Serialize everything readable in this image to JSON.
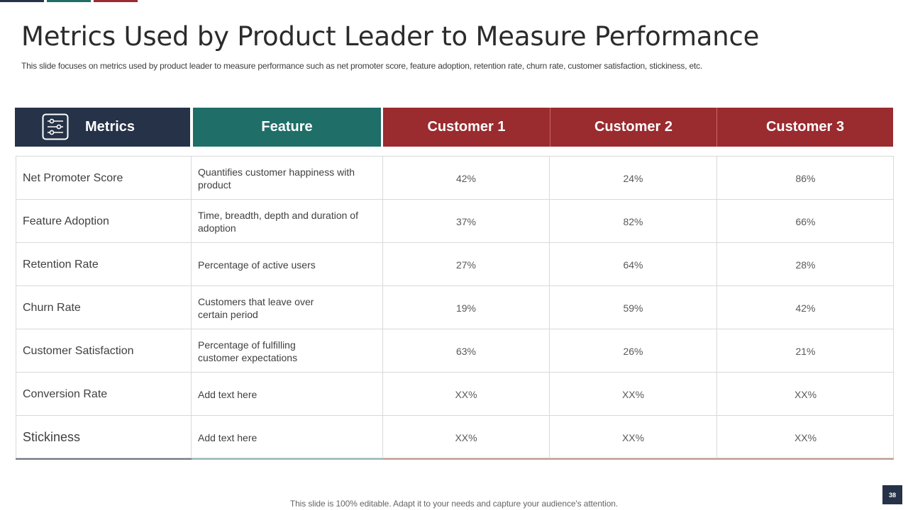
{
  "slide": {
    "title": "Metrics Used by Product Leader to Measure Performance",
    "subtitle": "This slide focuses on metrics used by product leader to measure performance such as net promoter score, feature adoption, retention rate, churn rate, customer satisfaction, stickiness, etc.",
    "footer": "This slide is 100% editable. Adapt it to your needs and capture your audience's attention.",
    "page_number": "38"
  },
  "colors": {
    "navy": "#253247",
    "teal": "#1f6e68",
    "red": "#9a2b2f"
  },
  "table": {
    "headers": {
      "metrics": "Metrics",
      "feature": "Feature",
      "customer1": "Customer 1",
      "customer2": "Customer 2",
      "customer3": "Customer 3"
    },
    "header_icon": "sliders-settings-icon",
    "rows": [
      {
        "metric": "Net Promoter Score",
        "feature": "Quantifies customer happiness with product",
        "c1": "42%",
        "c2": "24%",
        "c3": "86%"
      },
      {
        "metric": "Feature Adoption",
        "feature": "Time, breadth, depth and duration of adoption",
        "c1": "37%",
        "c2": "82%",
        "c3": "66%"
      },
      {
        "metric": "Retention Rate",
        "feature": "Percentage of active users",
        "c1": "27%",
        "c2": "64%",
        "c3": "28%"
      },
      {
        "metric": "Churn Rate",
        "feature": "Customers that leave over certain period",
        "c1": "19%",
        "c2": "59%",
        "c3": "42%"
      },
      {
        "metric": "Customer Satisfaction",
        "feature": "Percentage of fulfilling customer expectations",
        "c1": "63%",
        "c2": "26%",
        "c3": "21%"
      },
      {
        "metric": "Conversion Rate",
        "feature": "Add text here",
        "c1": "XX%",
        "c2": "XX%",
        "c3": "XX%"
      },
      {
        "metric": "Stickiness",
        "feature": "Add text here",
        "c1": "XX%",
        "c2": "XX%",
        "c3": "XX%"
      }
    ]
  }
}
